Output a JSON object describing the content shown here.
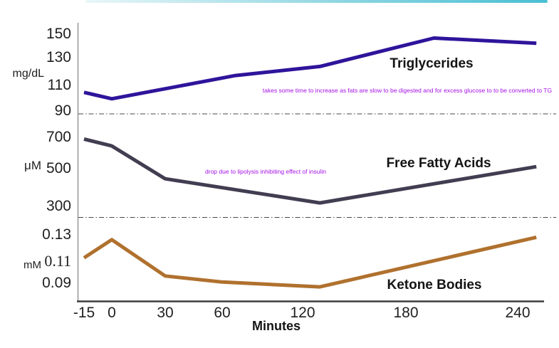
{
  "header": {
    "bar_colors": {
      "left": "#e9f6f8",
      "mid": "#8ed6e2",
      "right": "#49bfd3"
    }
  },
  "chart_data": {
    "type": "line",
    "xlabel": "Minutes",
    "x_ticks": [
      "-15",
      "0",
      "30",
      "60",
      "120",
      "180",
      "240"
    ],
    "annotation_color": "#a410e6",
    "grid": "dash-dot separators between panels",
    "legend_position": "labels inline beside each line",
    "panels": [
      {
        "label": "Triglycerides",
        "unit": "mg/dL",
        "y_ticks": [
          "150",
          "130",
          "110",
          "90"
        ],
        "ylim": [
          90,
          155
        ],
        "color": "#2f149b",
        "annotation": "takes some time to increase as fats are slow to be digested and for excess glucose to to be converted to TG",
        "points": [
          {
            "t": -15,
            "v": 105
          },
          {
            "t": 0,
            "v": 100
          },
          {
            "t": 70,
            "v": 118
          },
          {
            "t": 130,
            "v": 125
          },
          {
            "t": 195,
            "v": 147
          },
          {
            "t": 250,
            "v": 143
          }
        ]
      },
      {
        "label": "Free Fatty Acids",
        "unit": "μM",
        "y_ticks": [
          "700",
          "500",
          "300"
        ],
        "ylim": [
          250,
          720
        ],
        "color": "#423d51",
        "annotation": "drop due to lipolysis inhibiting effect of insulin",
        "points": [
          {
            "t": -15,
            "v": 690
          },
          {
            "t": 0,
            "v": 650
          },
          {
            "t": 30,
            "v": 460
          },
          {
            "t": 130,
            "v": 320
          },
          {
            "t": 250,
            "v": 530
          }
        ]
      },
      {
        "label": "Ketone Bodies",
        "unit": "mM",
        "y_ticks": [
          "0.13",
          "0.11",
          "0.09"
        ],
        "ylim": [
          0.085,
          0.135
        ],
        "color": "#b0712e",
        "annotation": "",
        "points": [
          {
            "t": -15,
            "v": 0.111
          },
          {
            "t": 0,
            "v": 0.126
          },
          {
            "t": 30,
            "v": 0.096
          },
          {
            "t": 60,
            "v": 0.091
          },
          {
            "t": 130,
            "v": 0.087
          },
          {
            "t": 250,
            "v": 0.128
          }
        ]
      }
    ]
  }
}
